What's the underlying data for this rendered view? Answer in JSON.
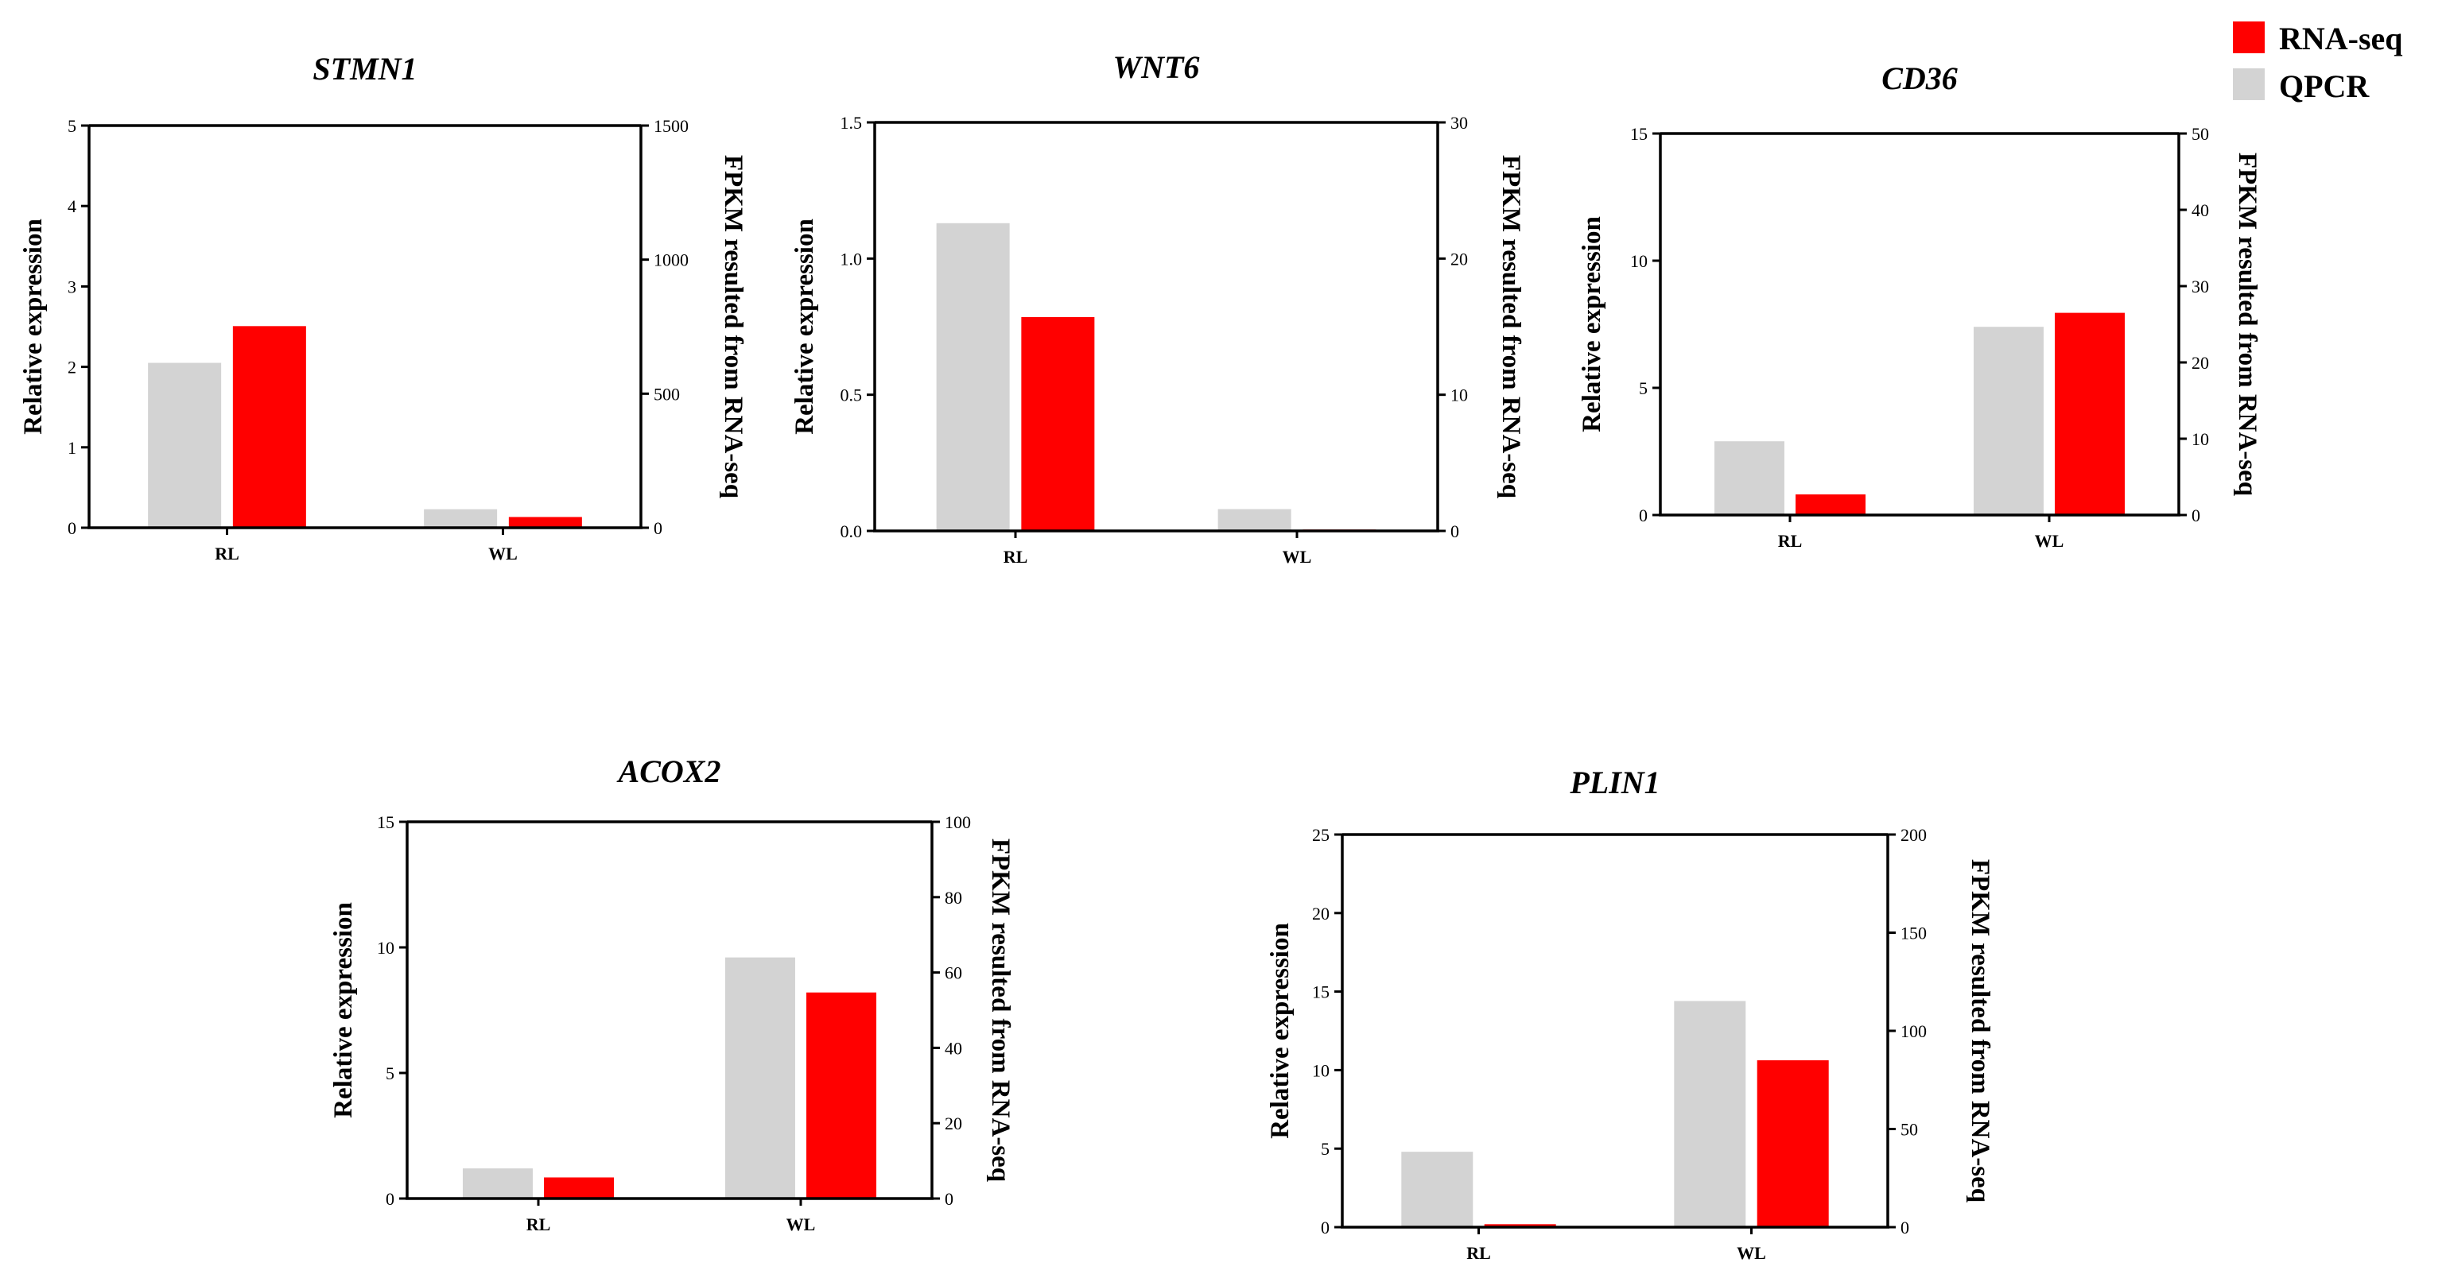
{
  "legend": {
    "entries": [
      {
        "name": "RNA-seq",
        "color": "#ff0000"
      },
      {
        "name": "QPCR",
        "color": "#d3d3d3"
      }
    ]
  },
  "chart_data": [
    {
      "type": "bar",
      "title": "STMN1",
      "categories": [
        "RL",
        "WL"
      ],
      "ylabel": "Relative expression",
      "y2label": "FPKM resulted from RNA-seq",
      "ylim": [
        0,
        5
      ],
      "yticks": [
        "0",
        "1",
        "2",
        "3",
        "4",
        "5"
      ],
      "y2lim": [
        0,
        1500
      ],
      "y2ticks": [
        "0",
        "500",
        "1000",
        "1500"
      ],
      "series": [
        {
          "name": "QPCR",
          "axis": "left",
          "color": "#d3d3d3",
          "values": [
            2.05,
            0.23
          ]
        },
        {
          "name": "RNA-seq",
          "axis": "right",
          "color": "#ff0000",
          "values": [
            752,
            40
          ]
        }
      ]
    },
    {
      "type": "bar",
      "title": "WNT6",
      "categories": [
        "RL",
        "WL"
      ],
      "ylabel": "Relative expression",
      "y2label": "FPKM resulted from RNA-seq",
      "ylim": [
        0,
        1.5
      ],
      "yticks": [
        "0.0",
        "0.5",
        "1.0",
        "1.5"
      ],
      "y2lim": [
        0,
        30
      ],
      "y2ticks": [
        "0",
        "10",
        "20",
        "30"
      ],
      "series": [
        {
          "name": "QPCR",
          "axis": "left",
          "color": "#d3d3d3",
          "values": [
            1.13,
            0.08
          ]
        },
        {
          "name": "RNA-seq",
          "axis": "right",
          "color": "#ff0000",
          "values": [
            15.7,
            0.1
          ]
        }
      ]
    },
    {
      "type": "bar",
      "title": "CD36",
      "categories": [
        "RL",
        "WL"
      ],
      "ylabel": "Relative expression",
      "y2label": "FPKM resulted from RNA-seq",
      "ylim": [
        0,
        15
      ],
      "yticks": [
        "0",
        "5",
        "10",
        "15"
      ],
      "y2lim": [
        0,
        50
      ],
      "y2ticks": [
        "0",
        "10",
        "20",
        "30",
        "40",
        "50"
      ],
      "series": [
        {
          "name": "QPCR",
          "axis": "left",
          "color": "#d3d3d3",
          "values": [
            2.9,
            7.4
          ]
        },
        {
          "name": "RNA-seq",
          "axis": "right",
          "color": "#ff0000",
          "values": [
            2.7,
            26.5
          ]
        }
      ]
    },
    {
      "type": "bar",
      "title": "ACOX2",
      "categories": [
        "RL",
        "WL"
      ],
      "ylabel": "Relative expression",
      "y2label": "FPKM resulted from RNA-seq",
      "ylim": [
        0,
        15
      ],
      "yticks": [
        "0",
        "5",
        "10",
        "15"
      ],
      "y2lim": [
        0,
        100
      ],
      "y2ticks": [
        "0",
        "20",
        "40",
        "60",
        "80",
        "100"
      ],
      "series": [
        {
          "name": "QPCR",
          "axis": "left",
          "color": "#d3d3d3",
          "values": [
            1.2,
            9.6
          ]
        },
        {
          "name": "RNA-seq",
          "axis": "right",
          "color": "#ff0000",
          "values": [
            5.6,
            54.7
          ]
        }
      ]
    },
    {
      "type": "bar",
      "title": "PLIN1",
      "categories": [
        "RL",
        "WL"
      ],
      "ylabel": "Relative expression",
      "y2label": "FPKM resulted from RNA-seq",
      "ylim": [
        0,
        25
      ],
      "yticks": [
        "0",
        "5",
        "10",
        "15",
        "20",
        "25"
      ],
      "y2lim": [
        0,
        200
      ],
      "y2ticks": [
        "0",
        "50",
        "100",
        "150",
        "200"
      ],
      "series": [
        {
          "name": "QPCR",
          "axis": "left",
          "color": "#d3d3d3",
          "values": [
            4.8,
            14.4
          ]
        },
        {
          "name": "RNA-seq",
          "axis": "right",
          "color": "#ff0000",
          "values": [
            1.5,
            85
          ]
        }
      ]
    }
  ]
}
